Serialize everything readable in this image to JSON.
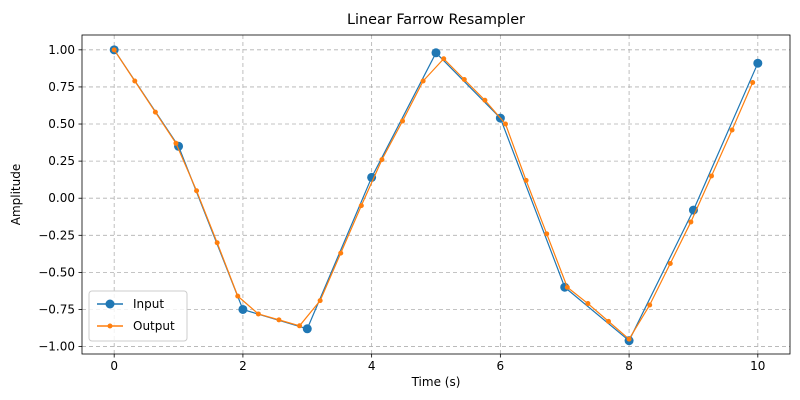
{
  "chart_data": {
    "type": "line",
    "title": "Linear Farrow Resampler",
    "xlabel": "Time (s)",
    "ylabel": "Amplitude",
    "xlim": [
      -0.5,
      10.5
    ],
    "ylim": [
      -1.05,
      1.1
    ],
    "xticks": [
      0,
      2,
      4,
      6,
      8,
      10
    ],
    "xtick_labels": [
      "0",
      "2",
      "4",
      "6",
      "8",
      "10"
    ],
    "yticks": [
      -1.0,
      -0.75,
      -0.5,
      -0.25,
      0.0,
      0.25,
      0.5,
      0.75,
      1.0
    ],
    "ytick_labels": [
      "−1.00",
      "−0.75",
      "−0.50",
      "−0.25",
      "0.00",
      "0.25",
      "0.50",
      "0.75",
      "1.00"
    ],
    "grid": true,
    "legend_position": "lower-left",
    "series": [
      {
        "name": "Input",
        "color": "#1f77b4",
        "marker": "circle-large",
        "x": [
          0,
          1,
          2,
          3,
          4,
          5,
          6,
          7,
          8,
          9,
          10
        ],
        "y": [
          1.0,
          0.35,
          -0.75,
          -0.88,
          0.14,
          0.98,
          0.54,
          -0.6,
          -0.96,
          -0.08,
          0.91
        ]
      },
      {
        "name": "Output",
        "color": "#ff7f0e",
        "marker": "circle-small",
        "x": [
          0,
          0.32,
          0.64,
          0.96,
          1.28,
          1.6,
          1.92,
          2.24,
          2.56,
          2.88,
          3.2,
          3.52,
          3.84,
          4.16,
          4.48,
          4.8,
          5.12,
          5.44,
          5.76,
          6.08,
          6.4,
          6.72,
          7.04,
          7.36,
          7.68,
          8.0,
          8.32,
          8.64,
          8.96,
          9.28,
          9.6,
          9.92
        ],
        "y": [
          1.0,
          0.79,
          0.58,
          0.37,
          0.05,
          -0.3,
          -0.66,
          -0.78,
          -0.82,
          -0.86,
          -0.69,
          -0.37,
          -0.05,
          0.26,
          0.52,
          0.79,
          0.94,
          0.8,
          0.66,
          0.5,
          0.12,
          -0.24,
          -0.6,
          -0.71,
          -0.83,
          -0.95,
          -0.72,
          -0.44,
          -0.16,
          0.15,
          0.46,
          0.78
        ]
      }
    ]
  }
}
